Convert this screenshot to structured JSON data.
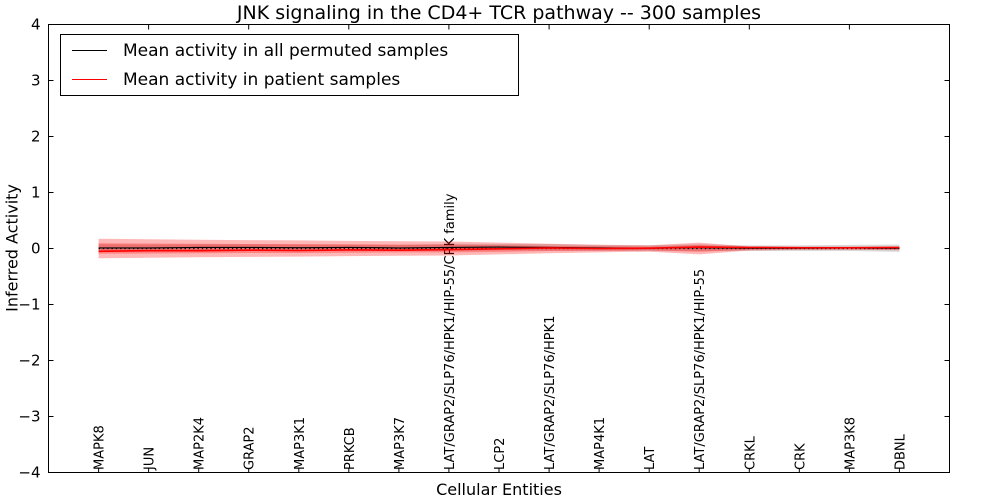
{
  "figure": {
    "background": "#ffffff",
    "frame_color": "#000000"
  },
  "chart_data": {
    "type": "line",
    "title": "JNK signaling in the CD4+ TCR pathway -- 300 samples",
    "xlabel": "Cellular Entities",
    "ylabel": "Inferred Activity",
    "ylim": [
      -4,
      4
    ],
    "yticks": [
      4,
      3,
      2,
      1,
      0,
      -1,
      -2,
      -3,
      -4
    ],
    "grid": false,
    "legend_position": "upper left",
    "categories": [
      "MAPK8",
      "JUN",
      "MAP2K4",
      "GRAP2",
      "MAP3K1",
      "PRKCB",
      "MAP3K7",
      "LAT/GRAP2/SLP76/HPK1/HIP-55/CRK family",
      "LCP2",
      "LAT/GRAP2/SLP76/HPK1",
      "MAP4K1",
      "LAT",
      "LAT/GRAP2/SLP76/HPK1/HIP-55",
      "CRKL",
      "CRK",
      "MAP3K8",
      "DBNL"
    ],
    "series": [
      {
        "name": "Mean activity in all permuted samples",
        "color": "#000000",
        "values": [
          0.01,
          0.01,
          0.02,
          0.02,
          0.015,
          0.02,
          0.01,
          0.02,
          0.025,
          0.02,
          0.01,
          0.005,
          0.015,
          0.005,
          0.005,
          0.01,
          0.005
        ]
      },
      {
        "name": "Mean activity in patient samples",
        "color": "#ff0000",
        "values": [
          -0.05,
          -0.04,
          -0.04,
          -0.03,
          -0.035,
          -0.025,
          -0.03,
          -0.02,
          -0.005,
          0.01,
          0.0,
          0.005,
          0.025,
          0.02,
          0.015,
          0.015,
          0.02
        ]
      }
    ],
    "bands": [
      {
        "name": "permuted-samples-spread",
        "color": "#000000",
        "opacity": 0.15,
        "center": "permuted",
        "half_widths": [
          0.065,
          0.06,
          0.055,
          0.06,
          0.055,
          0.05,
          0.055,
          0.065,
          0.055,
          0.06,
          0.05,
          0.055,
          0.06,
          0.05,
          0.05,
          0.055,
          0.065
        ]
      },
      {
        "name": "patient-samples-spread-outer",
        "color": "#ff0000",
        "opacity": 0.28,
        "center": "zero",
        "half_widths": [
          0.175,
          0.165,
          0.155,
          0.15,
          0.145,
          0.135,
          0.13,
          0.125,
          0.105,
          0.085,
          0.07,
          0.055,
          0.105,
          0.035,
          0.025,
          0.025,
          0.03
        ]
      },
      {
        "name": "patient-samples-spread-inner",
        "color": "#ff0000",
        "opacity": 0.28,
        "center": "zero",
        "half_widths": [
          0.095,
          0.09,
          0.085,
          0.08,
          0.08,
          0.075,
          0.07,
          0.07,
          0.06,
          0.045,
          0.04,
          0.03,
          0.06,
          0.02,
          0.015,
          0.015,
          0.018
        ]
      }
    ],
    "zero_line": {
      "style": "dotted",
      "color": "#000000"
    }
  }
}
